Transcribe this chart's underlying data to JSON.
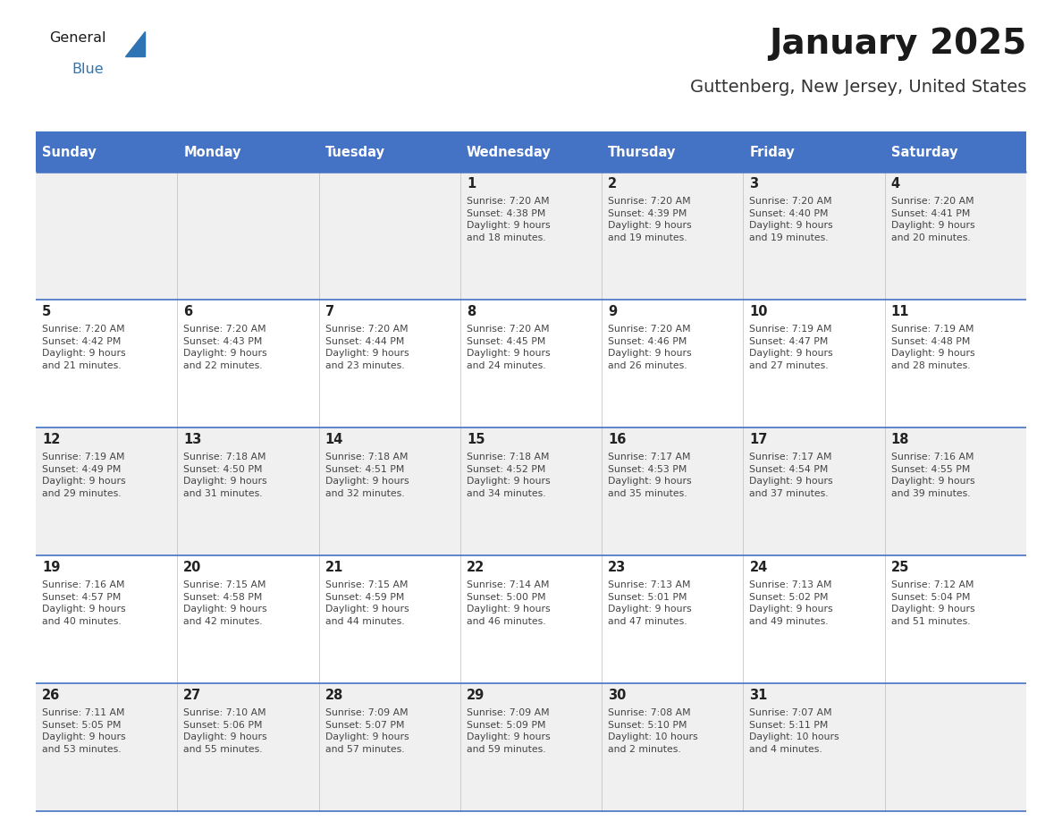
{
  "title": "January 2025",
  "subtitle": "Guttenberg, New Jersey, United States",
  "header_bg_color": "#4472C4",
  "header_text_color": "#FFFFFF",
  "day_names": [
    "Sunday",
    "Monday",
    "Tuesday",
    "Wednesday",
    "Thursday",
    "Friday",
    "Saturday"
  ],
  "row_bg_even": "#F0F0F0",
  "row_bg_odd": "#FFFFFF",
  "cell_border_color": "#4472C4",
  "row_border_color": "#4472C4",
  "title_color": "#1A1A1A",
  "subtitle_color": "#333333",
  "date_color": "#222222",
  "info_color": "#444444",
  "logo_general_color": "#1A1A1A",
  "logo_blue_color": "#2E74B5",
  "weeks": [
    {
      "days": [
        {
          "date": "",
          "info": ""
        },
        {
          "date": "",
          "info": ""
        },
        {
          "date": "",
          "info": ""
        },
        {
          "date": "1",
          "info": "Sunrise: 7:20 AM\nSunset: 4:38 PM\nDaylight: 9 hours\nand 18 minutes."
        },
        {
          "date": "2",
          "info": "Sunrise: 7:20 AM\nSunset: 4:39 PM\nDaylight: 9 hours\nand 19 minutes."
        },
        {
          "date": "3",
          "info": "Sunrise: 7:20 AM\nSunset: 4:40 PM\nDaylight: 9 hours\nand 19 minutes."
        },
        {
          "date": "4",
          "info": "Sunrise: 7:20 AM\nSunset: 4:41 PM\nDaylight: 9 hours\nand 20 minutes."
        }
      ]
    },
    {
      "days": [
        {
          "date": "5",
          "info": "Sunrise: 7:20 AM\nSunset: 4:42 PM\nDaylight: 9 hours\nand 21 minutes."
        },
        {
          "date": "6",
          "info": "Sunrise: 7:20 AM\nSunset: 4:43 PM\nDaylight: 9 hours\nand 22 minutes."
        },
        {
          "date": "7",
          "info": "Sunrise: 7:20 AM\nSunset: 4:44 PM\nDaylight: 9 hours\nand 23 minutes."
        },
        {
          "date": "8",
          "info": "Sunrise: 7:20 AM\nSunset: 4:45 PM\nDaylight: 9 hours\nand 24 minutes."
        },
        {
          "date": "9",
          "info": "Sunrise: 7:20 AM\nSunset: 4:46 PM\nDaylight: 9 hours\nand 26 minutes."
        },
        {
          "date": "10",
          "info": "Sunrise: 7:19 AM\nSunset: 4:47 PM\nDaylight: 9 hours\nand 27 minutes."
        },
        {
          "date": "11",
          "info": "Sunrise: 7:19 AM\nSunset: 4:48 PM\nDaylight: 9 hours\nand 28 minutes."
        }
      ]
    },
    {
      "days": [
        {
          "date": "12",
          "info": "Sunrise: 7:19 AM\nSunset: 4:49 PM\nDaylight: 9 hours\nand 29 minutes."
        },
        {
          "date": "13",
          "info": "Sunrise: 7:18 AM\nSunset: 4:50 PM\nDaylight: 9 hours\nand 31 minutes."
        },
        {
          "date": "14",
          "info": "Sunrise: 7:18 AM\nSunset: 4:51 PM\nDaylight: 9 hours\nand 32 minutes."
        },
        {
          "date": "15",
          "info": "Sunrise: 7:18 AM\nSunset: 4:52 PM\nDaylight: 9 hours\nand 34 minutes."
        },
        {
          "date": "16",
          "info": "Sunrise: 7:17 AM\nSunset: 4:53 PM\nDaylight: 9 hours\nand 35 minutes."
        },
        {
          "date": "17",
          "info": "Sunrise: 7:17 AM\nSunset: 4:54 PM\nDaylight: 9 hours\nand 37 minutes."
        },
        {
          "date": "18",
          "info": "Sunrise: 7:16 AM\nSunset: 4:55 PM\nDaylight: 9 hours\nand 39 minutes."
        }
      ]
    },
    {
      "days": [
        {
          "date": "19",
          "info": "Sunrise: 7:16 AM\nSunset: 4:57 PM\nDaylight: 9 hours\nand 40 minutes."
        },
        {
          "date": "20",
          "info": "Sunrise: 7:15 AM\nSunset: 4:58 PM\nDaylight: 9 hours\nand 42 minutes."
        },
        {
          "date": "21",
          "info": "Sunrise: 7:15 AM\nSunset: 4:59 PM\nDaylight: 9 hours\nand 44 minutes."
        },
        {
          "date": "22",
          "info": "Sunrise: 7:14 AM\nSunset: 5:00 PM\nDaylight: 9 hours\nand 46 minutes."
        },
        {
          "date": "23",
          "info": "Sunrise: 7:13 AM\nSunset: 5:01 PM\nDaylight: 9 hours\nand 47 minutes."
        },
        {
          "date": "24",
          "info": "Sunrise: 7:13 AM\nSunset: 5:02 PM\nDaylight: 9 hours\nand 49 minutes."
        },
        {
          "date": "25",
          "info": "Sunrise: 7:12 AM\nSunset: 5:04 PM\nDaylight: 9 hours\nand 51 minutes."
        }
      ]
    },
    {
      "days": [
        {
          "date": "26",
          "info": "Sunrise: 7:11 AM\nSunset: 5:05 PM\nDaylight: 9 hours\nand 53 minutes."
        },
        {
          "date": "27",
          "info": "Sunrise: 7:10 AM\nSunset: 5:06 PM\nDaylight: 9 hours\nand 55 minutes."
        },
        {
          "date": "28",
          "info": "Sunrise: 7:09 AM\nSunset: 5:07 PM\nDaylight: 9 hours\nand 57 minutes."
        },
        {
          "date": "29",
          "info": "Sunrise: 7:09 AM\nSunset: 5:09 PM\nDaylight: 9 hours\nand 59 minutes."
        },
        {
          "date": "30",
          "info": "Sunrise: 7:08 AM\nSunset: 5:10 PM\nDaylight: 10 hours\nand 2 minutes."
        },
        {
          "date": "31",
          "info": "Sunrise: 7:07 AM\nSunset: 5:11 PM\nDaylight: 10 hours\nand 4 minutes."
        },
        {
          "date": "",
          "info": ""
        }
      ]
    }
  ]
}
